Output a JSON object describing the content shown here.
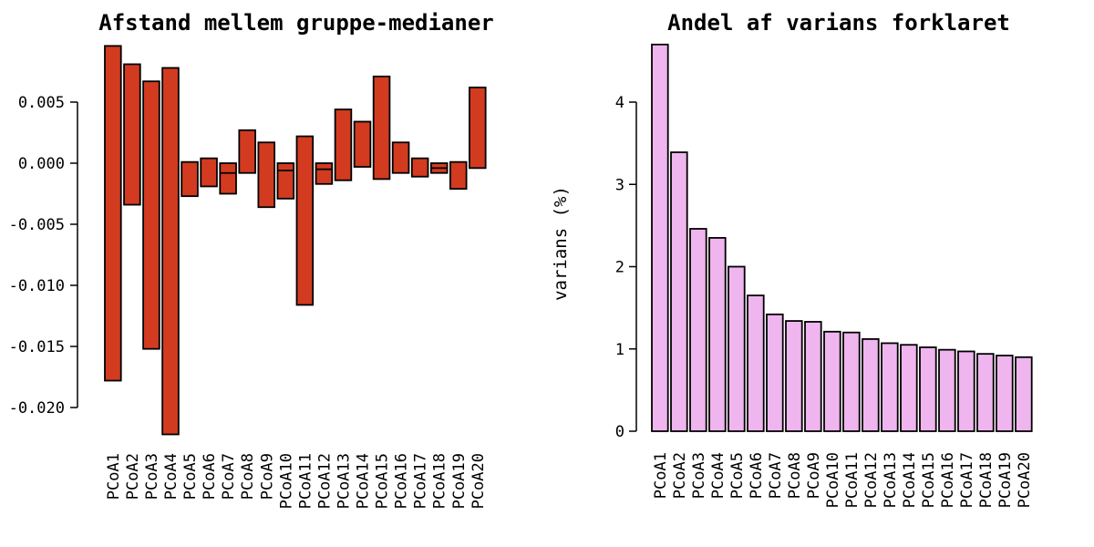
{
  "page": {
    "background_color": "#ffffff",
    "text_color": "#000000"
  },
  "chart_data": [
    {
      "type": "bar",
      "subtype": "floating-range-bars",
      "title": "Afstand mellem gruppe-medianer",
      "xlabel": "",
      "ylabel": "",
      "ylim": [
        -0.0235,
        0.01
      ],
      "grid": false,
      "legend": "none",
      "bar_color": "#d23b20",
      "border_color": "#000000",
      "y_ticks": [
        {
          "label": "0.005",
          "value": 0.005
        },
        {
          "label": "0.000",
          "value": 0.0
        },
        {
          "label": "-0.005",
          "value": -0.005
        },
        {
          "label": "-0.010",
          "value": -0.01
        },
        {
          "label": "-0.015",
          "value": -0.015
        },
        {
          "label": "-0.020",
          "value": -0.02
        }
      ],
      "categories": [
        "PCoA1",
        "PCoA2",
        "PCoA3",
        "PCoA4",
        "PCoA5",
        "PCoA6",
        "PCoA7",
        "PCoA8",
        "PCoA9",
        "PCoA10",
        "PCoA11",
        "PCoA12",
        "PCoA13",
        "PCoA14",
        "PCoA15",
        "PCoA16",
        "PCoA17",
        "PCoA18",
        "PCoA19",
        "PCoA20"
      ],
      "bars": [
        {
          "top": 0.0096,
          "bottom": -0.0178,
          "divider": null
        },
        {
          "top": 0.0081,
          "bottom": -0.0034,
          "divider": null
        },
        {
          "top": 0.0067,
          "bottom": -0.0152,
          "divider": null
        },
        {
          "top": 0.0078,
          "bottom": -0.0222,
          "divider": null
        },
        {
          "top": 0.0001,
          "bottom": -0.0027,
          "divider": null
        },
        {
          "top": 0.0004,
          "bottom": -0.0019,
          "divider": null
        },
        {
          "top": 0.0,
          "bottom": -0.0025,
          "divider": -0.0008
        },
        {
          "top": 0.0027,
          "bottom": -0.0008,
          "divider": null
        },
        {
          "top": 0.0017,
          "bottom": -0.0036,
          "divider": null
        },
        {
          "top": 0.0,
          "bottom": -0.0029,
          "divider": -0.0006
        },
        {
          "top": 0.0022,
          "bottom": -0.0116,
          "divider": null
        },
        {
          "top": 0.0,
          "bottom": -0.0017,
          "divider": -0.0005
        },
        {
          "top": 0.0044,
          "bottom": -0.0014,
          "divider": null
        },
        {
          "top": 0.0034,
          "bottom": -0.0003,
          "divider": null
        },
        {
          "top": 0.0071,
          "bottom": -0.0013,
          "divider": null
        },
        {
          "top": 0.0017,
          "bottom": -0.0008,
          "divider": null
        },
        {
          "top": 0.0004,
          "bottom": -0.0011,
          "divider": null
        },
        {
          "top": 0.0,
          "bottom": -0.0008,
          "divider": -0.0004
        },
        {
          "top": 0.0001,
          "bottom": -0.0021,
          "divider": null
        },
        {
          "top": 0.0062,
          "bottom": -0.0004,
          "divider": null
        }
      ]
    },
    {
      "type": "bar",
      "title": "Andel af varians forklaret",
      "xlabel": "",
      "ylabel": "varians (%)",
      "ylim": [
        0,
        4.7
      ],
      "grid": false,
      "legend": "none",
      "bar_color": "#efb5ee",
      "border_color": "#000000",
      "y_ticks": [
        {
          "label": "0",
          "value": 0
        },
        {
          "label": "1",
          "value": 1
        },
        {
          "label": "2",
          "value": 2
        },
        {
          "label": "3",
          "value": 3
        },
        {
          "label": "4",
          "value": 4
        }
      ],
      "categories": [
        "PCoA1",
        "PCoA2",
        "PCoA3",
        "PCoA4",
        "PCoA5",
        "PCoA6",
        "PCoA7",
        "PCoA8",
        "PCoA9",
        "PCoA10",
        "PCoA11",
        "PCoA12",
        "PCoA13",
        "PCoA14",
        "PCoA15",
        "PCoA16",
        "PCoA17",
        "PCoA18",
        "PCoA19",
        "PCoA20"
      ],
      "values": [
        4.7,
        3.39,
        2.46,
        2.35,
        2.0,
        1.65,
        1.42,
        1.34,
        1.33,
        1.21,
        1.2,
        1.12,
        1.07,
        1.05,
        1.02,
        0.99,
        0.97,
        0.94,
        0.92,
        0.9
      ]
    }
  ]
}
